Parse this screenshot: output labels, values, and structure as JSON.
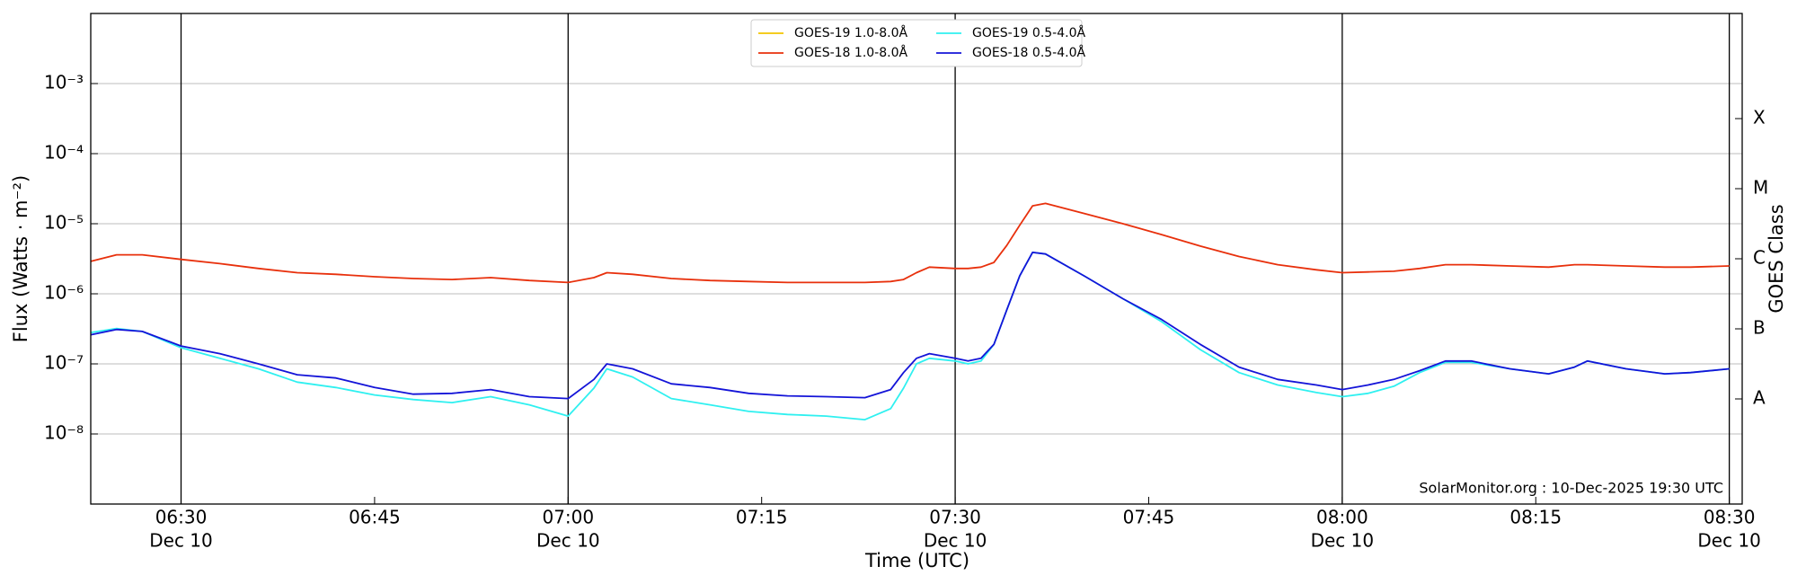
{
  "chart_data": {
    "type": "line",
    "log_y": true,
    "xgrid": true,
    "ygrid": true,
    "legend_position": "top",
    "xlabel": "Time (UTC)",
    "ylabel": "Flux (Watts · m⁻²)",
    "y2label": "GOES Class",
    "annotation": "SolarMonitor.org : 10-Dec-2025 19:30 UTC",
    "xlim": [
      "06:23",
      "08:31"
    ],
    "xticks": [
      "06:30",
      "06:45",
      "07:00",
      "07:15",
      "07:30",
      "07:45",
      "08:00",
      "08:15",
      "08:30"
    ],
    "xtick_sublabels": [
      "Dec 10",
      null,
      "Dec 10",
      null,
      "Dec 10",
      null,
      "Dec 10",
      null,
      "Dec 10"
    ],
    "ylim": [
      1e-09,
      0.01
    ],
    "yticks": [
      {
        "value": 1e-08,
        "label": "10⁻⁸"
      },
      {
        "value": 1e-07,
        "label": "10⁻⁷"
      },
      {
        "value": 1e-06,
        "label": "10⁻⁶"
      },
      {
        "value": 1e-05,
        "label": "10⁻⁵"
      },
      {
        "value": 0.0001,
        "label": "10⁻⁴"
      },
      {
        "value": 0.001,
        "label": "10⁻³"
      }
    ],
    "y2lim": [
      1e-09,
      0.01
    ],
    "y2ticks": [
      {
        "value": 3.1623e-08,
        "label": "A"
      },
      {
        "value": 3.1623e-07,
        "label": "B"
      },
      {
        "value": 3.1623e-06,
        "label": "C"
      },
      {
        "value": 3.1623e-05,
        "label": "M"
      },
      {
        "value": 0.00031623,
        "label": "X"
      }
    ],
    "x": [
      "06:23",
      "06:25",
      "06:27",
      "06:30",
      "06:33",
      "06:36",
      "06:39",
      "06:42",
      "06:45",
      "06:48",
      "06:51",
      "06:54",
      "06:57",
      "07:00",
      "07:02",
      "07:03",
      "07:05",
      "07:08",
      "07:11",
      "07:14",
      "07:17",
      "07:20",
      "07:23",
      "07:25",
      "07:26",
      "07:27",
      "07:28",
      "07:30",
      "07:31",
      "07:32",
      "07:33",
      "07:34",
      "07:35",
      "07:36",
      "07:37",
      "07:40",
      "07:43",
      "07:46",
      "07:49",
      "07:52",
      "07:55",
      "07:58",
      "08:00",
      "08:02",
      "08:04",
      "08:06",
      "08:08",
      "08:10",
      "08:13",
      "08:16",
      "08:18",
      "08:19",
      "08:22",
      "08:25",
      "08:27",
      "08:30"
    ],
    "series": [
      {
        "name": "GOES-19 1.0-8.0Å",
        "color": "#f2c400",
        "values": [
          null,
          null,
          null,
          null,
          null,
          null,
          null,
          null,
          null,
          null,
          null,
          null,
          null,
          null,
          null,
          null,
          null,
          null,
          null,
          null,
          null,
          null,
          null,
          null,
          null,
          null,
          null,
          null,
          null,
          null,
          null,
          null,
          null,
          null,
          null,
          null,
          null,
          null,
          null,
          null,
          null,
          null,
          null,
          null,
          null,
          null,
          null,
          null,
          null,
          null,
          null,
          null,
          null,
          null,
          null,
          null
        ]
      },
      {
        "name": "GOES-18 1.0-8.0Å",
        "color": "#e8300c",
        "values": [
          2.9e-06,
          3.6e-06,
          3.6e-06,
          3.1e-06,
          2.7e-06,
          2.3e-06,
          2e-06,
          1.9e-06,
          1.75e-06,
          1.65e-06,
          1.6e-06,
          1.7e-06,
          1.55e-06,
          1.45e-06,
          1.7e-06,
          2e-06,
          1.9e-06,
          1.65e-06,
          1.55e-06,
          1.5e-06,
          1.45e-06,
          1.45e-06,
          1.45e-06,
          1.5e-06,
          1.6e-06,
          2e-06,
          2.4e-06,
          2.3e-06,
          2.3e-06,
          2.4e-06,
          2.8e-06,
          4.9e-06,
          9.5e-06,
          1.8e-05,
          1.95e-05,
          1.4e-05,
          1e-05,
          7e-06,
          4.8e-06,
          3.4e-06,
          2.6e-06,
          2.2e-06,
          2e-06,
          2.05e-06,
          2.1e-06,
          2.3e-06,
          2.6e-06,
          2.6e-06,
          2.5e-06,
          2.4e-06,
          2.6e-06,
          2.6e-06,
          2.5e-06,
          2.4e-06,
          2.4e-06,
          2.5e-06
        ]
      },
      {
        "name": "GOES-19 0.5-4.0Å",
        "color": "#2ff0f0",
        "values": [
          2.8e-07,
          3.2e-07,
          2.9e-07,
          1.7e-07,
          1.2e-07,
          8.5e-08,
          5.5e-08,
          4.6e-08,
          3.6e-08,
          3.1e-08,
          2.8e-08,
          3.4e-08,
          2.6e-08,
          1.8e-08,
          4.5e-08,
          8.5e-08,
          6.5e-08,
          3.2e-08,
          2.6e-08,
          2.1e-08,
          1.9e-08,
          1.8e-08,
          1.6e-08,
          2.3e-08,
          4.5e-08,
          1e-07,
          1.2e-07,
          1.1e-07,
          1e-07,
          1.1e-07,
          1.9e-07,
          5.9e-07,
          1.8e-06,
          3.9e-06,
          3.7e-06,
          1.8e-06,
          8.5e-07,
          4e-07,
          1.6e-07,
          7.5e-08,
          5e-08,
          3.9e-08,
          3.4e-08,
          3.8e-08,
          4.8e-08,
          7.5e-08,
          1.05e-07,
          1.05e-07,
          8.5e-08,
          7.2e-08,
          9e-08,
          1.1e-07,
          8.5e-08,
          7.2e-08,
          7.5e-08,
          8.5e-08
        ]
      },
      {
        "name": "GOES-18 0.5-4.0Å",
        "color": "#1414d8",
        "values": [
          2.6e-07,
          3.1e-07,
          2.9e-07,
          1.8e-07,
          1.4e-07,
          1e-07,
          7e-08,
          6.3e-08,
          4.6e-08,
          3.7e-08,
          3.8e-08,
          4.3e-08,
          3.4e-08,
          3.2e-08,
          6e-08,
          1e-07,
          8.5e-08,
          5.2e-08,
          4.6e-08,
          3.8e-08,
          3.5e-08,
          3.4e-08,
          3.3e-08,
          4.3e-08,
          7.5e-08,
          1.2e-07,
          1.4e-07,
          1.2e-07,
          1.1e-07,
          1.2e-07,
          1.9e-07,
          5.9e-07,
          1.8e-06,
          3.9e-06,
          3.7e-06,
          1.8e-06,
          8.5e-07,
          4.3e-07,
          1.9e-07,
          9e-08,
          6e-08,
          5e-08,
          4.3e-08,
          5e-08,
          6e-08,
          8e-08,
          1.1e-07,
          1.1e-07,
          8.5e-08,
          7.2e-08,
          9e-08,
          1.1e-07,
          8.5e-08,
          7.2e-08,
          7.5e-08,
          8.5e-08
        ]
      }
    ]
  }
}
